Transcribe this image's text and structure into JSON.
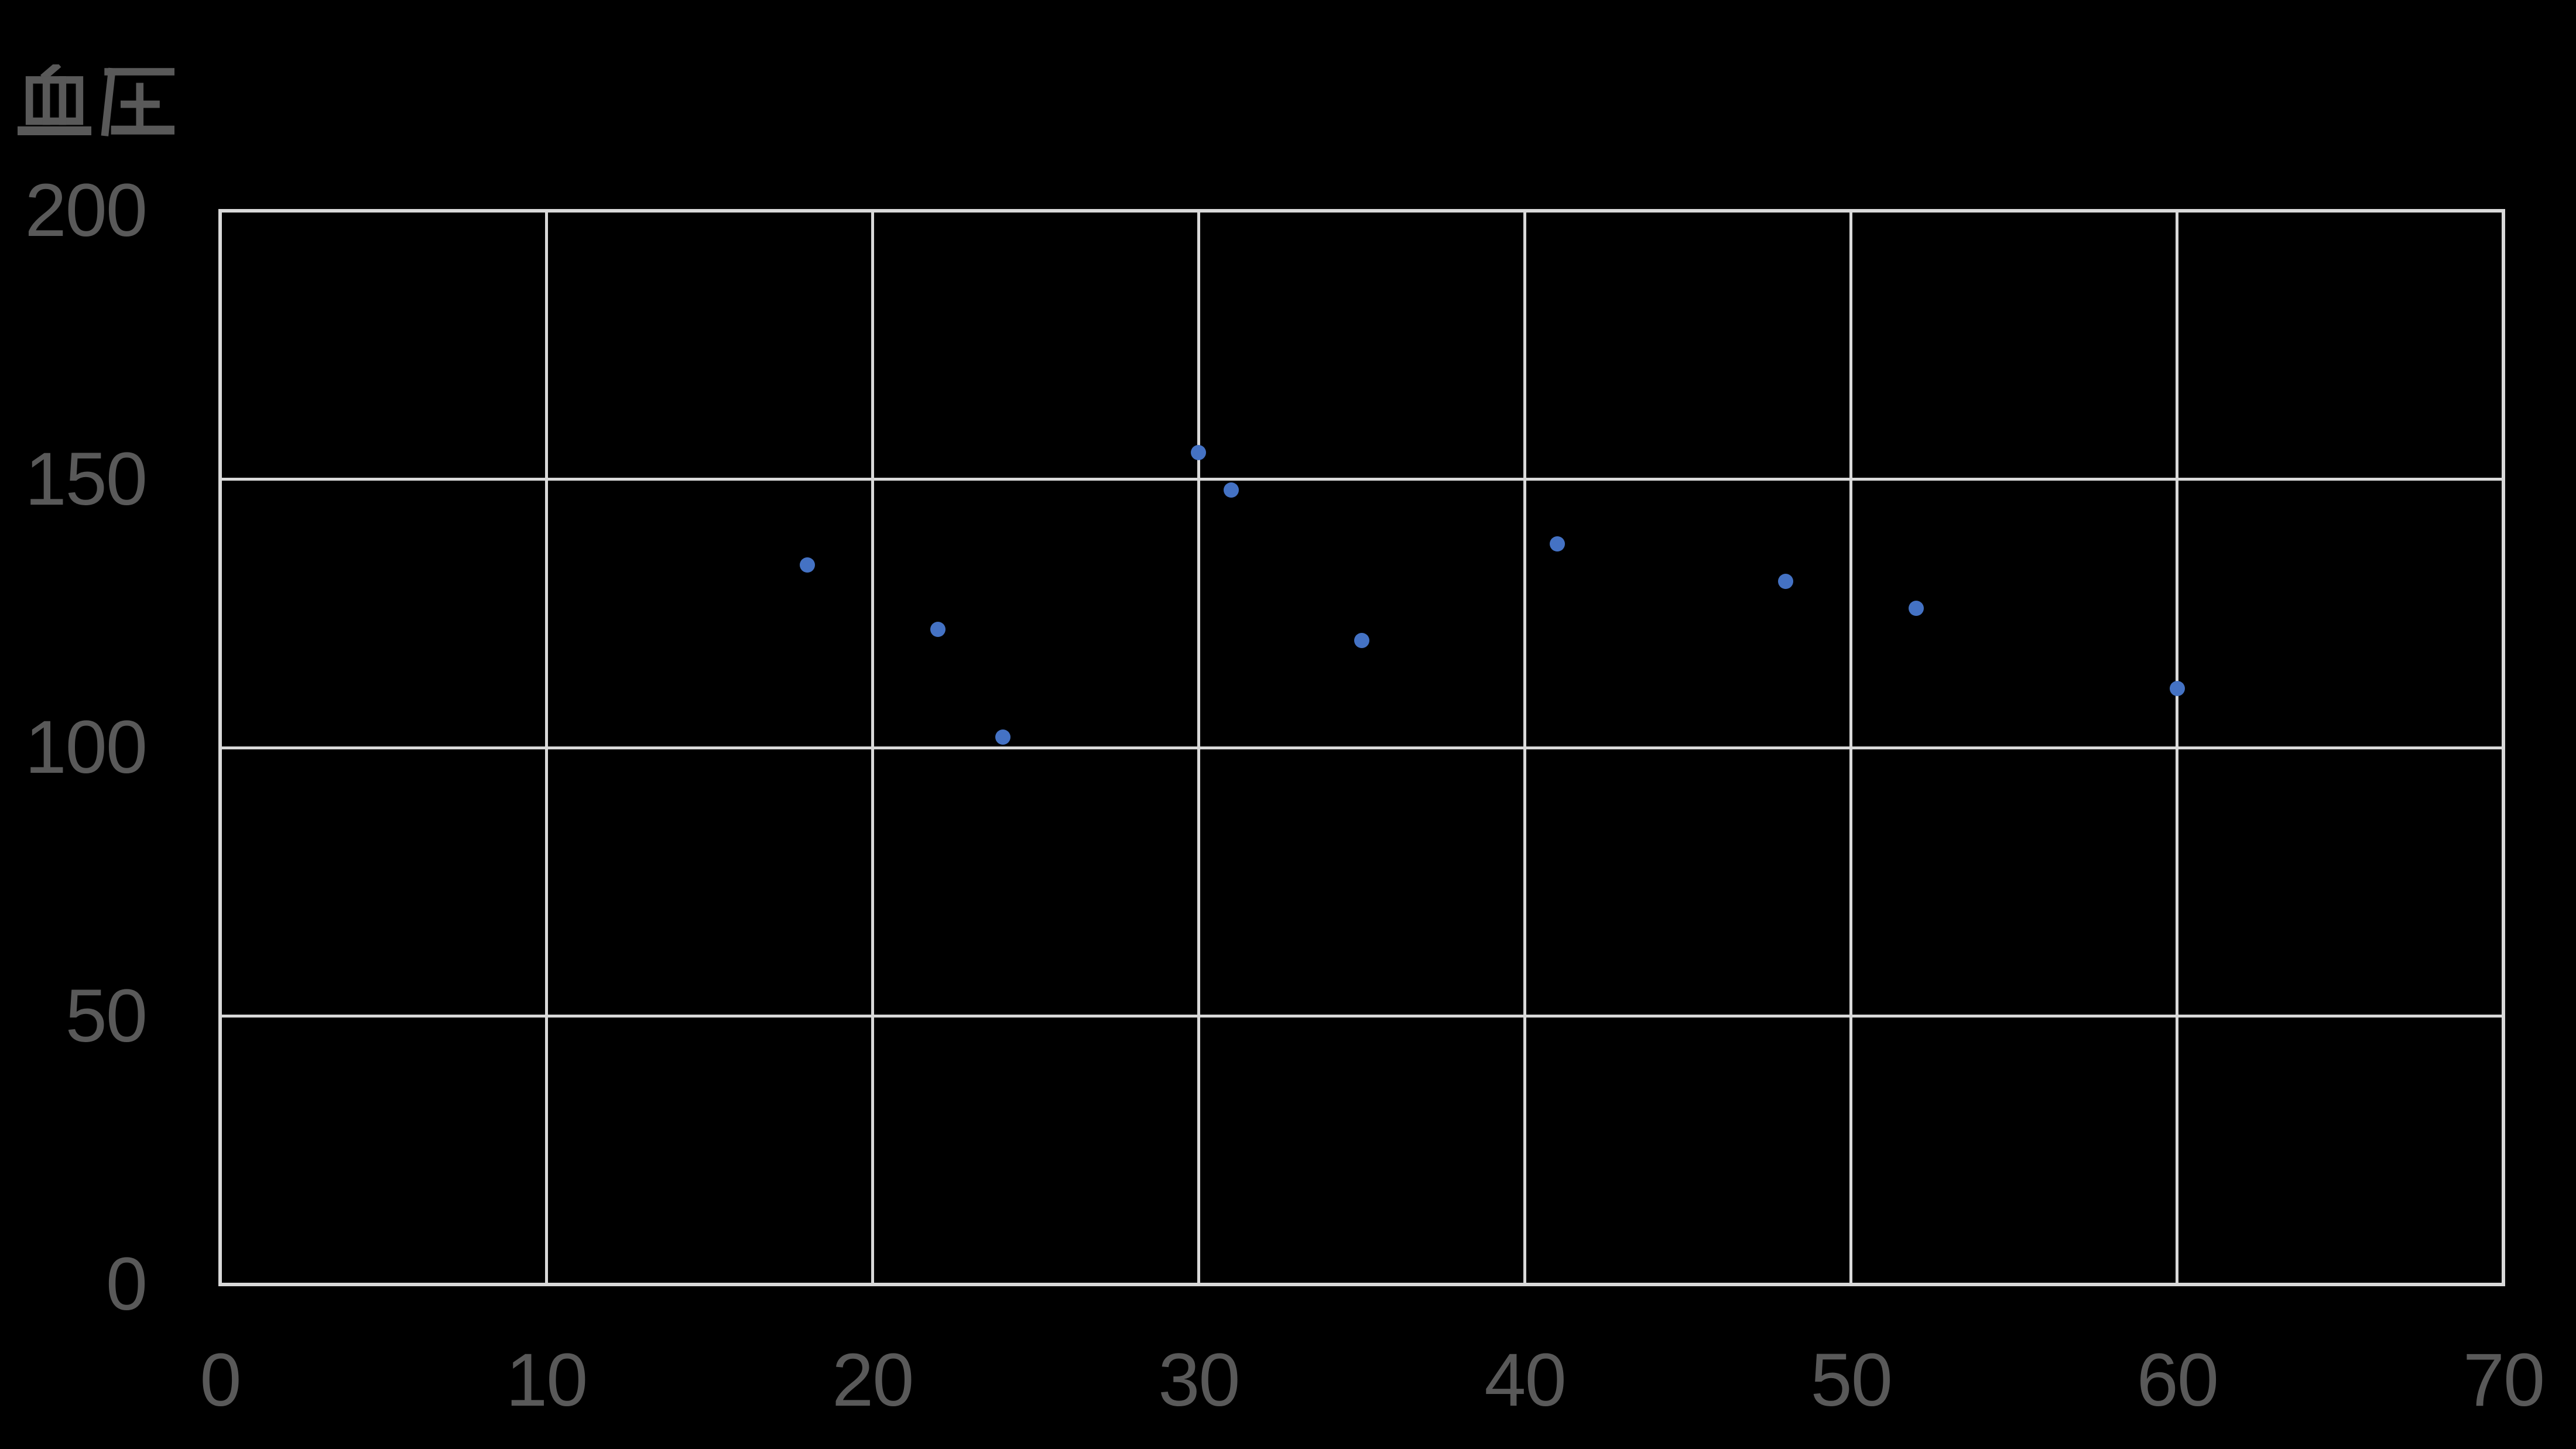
{
  "chart_data": {
    "type": "scatter",
    "title": "血圧",
    "xlabel": "",
    "ylabel": "血圧",
    "xlim": [
      0,
      70
    ],
    "ylim": [
      0,
      200
    ],
    "x_ticks": [
      0,
      10,
      20,
      30,
      40,
      50,
      60,
      70
    ],
    "y_ticks": [
      0,
      50,
      100,
      150,
      200
    ],
    "grid": true,
    "legend": "none",
    "background_color": "#000000",
    "text_color": "#595959",
    "grid_color": "#d9d9d9",
    "series": [
      {
        "name": "血圧",
        "marker": "circle",
        "color": "#4472c4",
        "points": [
          [
            18,
            134
          ],
          [
            22,
            122
          ],
          [
            24,
            102
          ],
          [
            30,
            155
          ],
          [
            31,
            148
          ],
          [
            35,
            120
          ],
          [
            41,
            138
          ],
          [
            48,
            131
          ],
          [
            52,
            126
          ],
          [
            60,
            111
          ]
        ]
      }
    ]
  }
}
